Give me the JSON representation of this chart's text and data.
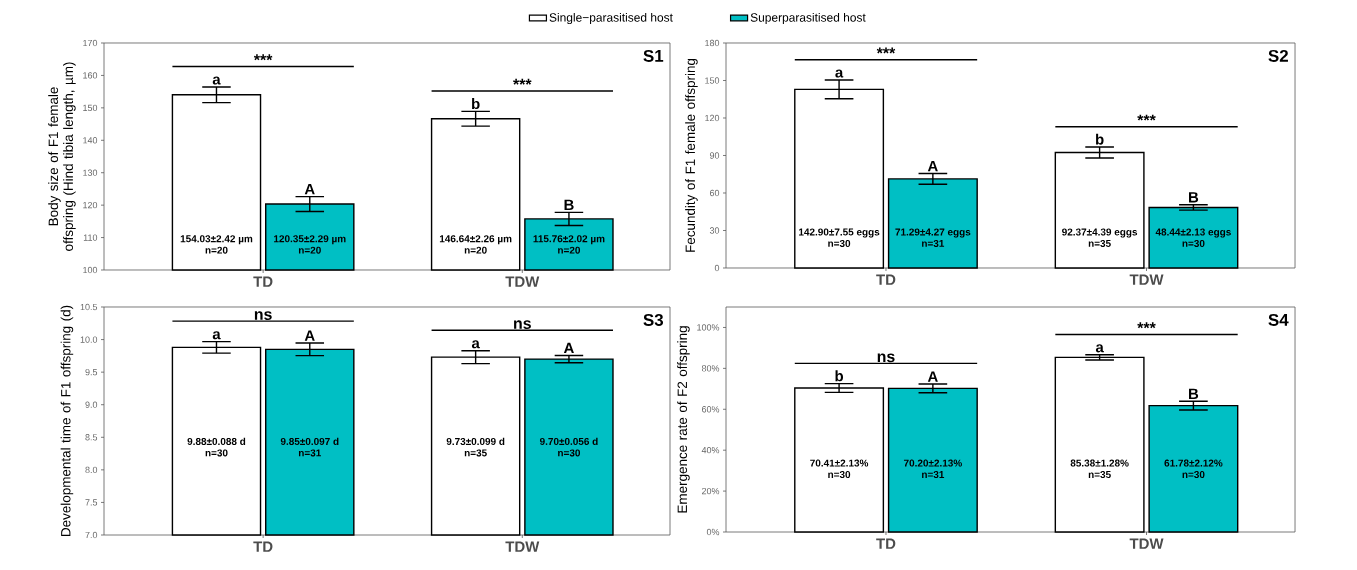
{
  "chart_data": [
    {
      "type": "bar",
      "title": "S1",
      "ylabel": "Body size of F1 female offspring (Hind tibia length, µm)",
      "categories": [
        "TD",
        "TDW"
      ],
      "ylim": [
        100,
        170
      ],
      "yticks": [
        100,
        110,
        120,
        130,
        140,
        150,
        160,
        170
      ],
      "legend": "top",
      "series": [
        {
          "name": "Single−parasitised host",
          "color": "#ffffff",
          "values": [
            154.03,
            146.64
          ],
          "errors": [
            2.42,
            2.26
          ],
          "value_labels": [
            "154.03±2.42 µm",
            "146.64±2.26 µm"
          ]
        },
        {
          "name": "Superparasitised host",
          "color": "#00bfc4",
          "values": [
            120.35,
            115.76
          ],
          "errors": [
            2.29,
            2.02
          ],
          "value_labels": [
            "120.35±2.29 µm",
            "115.76±2.02 µm"
          ]
        }
      ],
      "annotations": [
        "n=20",
        "n=20",
        "n=20",
        "n=20",
        "a",
        "A",
        "b",
        "B",
        "***",
        "***"
      ]
    },
    {
      "type": "bar",
      "title": "S2",
      "ylabel": "Fecundity of F1 female offspring",
      "categories": [
        "TD",
        "TDW"
      ],
      "ylim": [
        0,
        180
      ],
      "yticks": [
        0,
        30,
        60,
        90,
        120,
        150,
        180
      ],
      "series": [
        {
          "color": "#ffffff",
          "values": [
            142.9,
            92.37
          ],
          "errors": [
            7.55,
            4.39
          ],
          "value_labels": [
            "142.90±7.55 eggs",
            "92.37±4.39 eggs"
          ]
        },
        {
          "color": "#00bfc4",
          "values": [
            71.29,
            48.44
          ],
          "errors": [
            4.27,
            2.13
          ],
          "value_labels": [
            "71.29±4.27 eggs",
            "48.44±2.13 eggs"
          ]
        }
      ],
      "annotations": [
        "n=30",
        "n=31",
        "n=35",
        "n=30",
        "a",
        "A",
        "b",
        "B",
        "***",
        "***"
      ]
    },
    {
      "type": "bar",
      "title": "S3",
      "ylabel": "Developmental time of F1 offspring (d)",
      "categories": [
        "TD",
        "TDW"
      ],
      "ylim": [
        7.0,
        10.5
      ],
      "yticks": [
        {
          "value": 7.0,
          "label": "7.0"
        },
        7.5,
        {
          "value": 8.0,
          "label": "8.0"
        },
        8.5,
        {
          "value": 9.0,
          "label": "9.0"
        },
        9.5,
        {
          "value": 10.0,
          "label": "10.0"
        },
        10.5
      ],
      "series": [
        {
          "color": "#ffffff",
          "values": [
            9.88,
            9.73
          ],
          "errors": [
            0.088,
            0.099
          ],
          "value_labels": [
            "9.88±0.088 d",
            "9.73±0.099 d"
          ]
        },
        {
          "color": "#00bfc4",
          "values": [
            9.85,
            9.7
          ],
          "errors": [
            0.097,
            0.056
          ],
          "value_labels": [
            "9.85±0.097 d",
            "9.70±0.056 d"
          ]
        }
      ],
      "annotations": [
        "n=30",
        "n=31",
        "n=35",
        "n=30",
        "a",
        "A",
        "a",
        "A",
        "ns",
        "ns"
      ]
    },
    {
      "type": "bar",
      "title": "S4",
      "ylabel": "Emergence rate of F2 offspring",
      "categories": [
        "TD",
        "TDW"
      ],
      "ylim": [
        0,
        110
      ],
      "yticks": [
        {
          "value": 0,
          "label": "0%"
        },
        {
          "value": 20,
          "label": "20%"
        },
        {
          "value": 40,
          "label": "40%"
        },
        {
          "value": 60,
          "label": "60%"
        },
        {
          "value": 80,
          "label": "80%"
        },
        {
          "value": 100,
          "label": "100%"
        }
      ],
      "series": [
        {
          "color": "#ffffff",
          "values": [
            70.41,
            85.38
          ],
          "errors": [
            2.13,
            1.28
          ],
          "value_labels": [
            "70.41±2.13%",
            "85.38±1.28%"
          ]
        },
        {
          "color": "#00bfc4",
          "values": [
            70.2,
            61.78
          ],
          "errors": [
            2.13,
            2.12
          ],
          "value_labels": [
            "70.20±2.13%",
            "61.78±2.12%"
          ]
        }
      ],
      "annotations": [
        "n=30",
        "n=31",
        "n=35",
        "n=30",
        "b",
        "A",
        "a",
        "B",
        "ns",
        "***"
      ]
    }
  ]
}
